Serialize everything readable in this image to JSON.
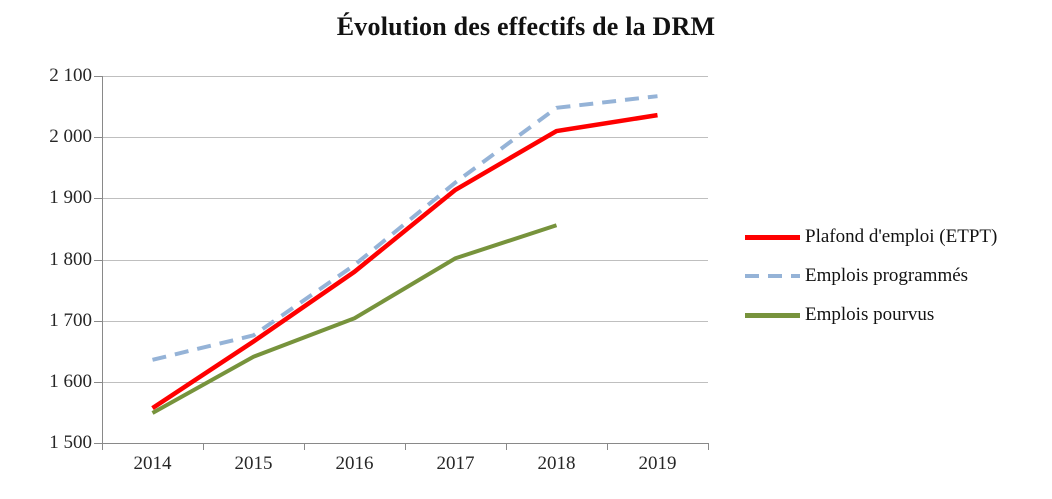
{
  "title": "Évolution des effectifs de la DRM",
  "chart_data": {
    "type": "line",
    "title": "Évolution des effectifs de la DRM",
    "categories": [
      "2014",
      "2015",
      "2016",
      "2017",
      "2018",
      "2019"
    ],
    "series": [
      {
        "name": "Plafond d'emploi (ETPT)",
        "color": "#FE0000",
        "dash": "solid",
        "values": [
          1557,
          1666,
          1780,
          1914,
          2010,
          2036
        ]
      },
      {
        "name": "Emplois programmés",
        "color": "#95B3D7",
        "dash": "dashed",
        "values": [
          1636,
          1676,
          1791,
          1926,
          2048,
          2067
        ]
      },
      {
        "name": "Emplois pourvus",
        "color": "#77933C",
        "dash": "solid",
        "values": [
          1549,
          1641,
          1704,
          1802,
          1856,
          null
        ]
      }
    ],
    "ylim": [
      1500,
      2100
    ],
    "y_tick_step": 100,
    "y_tick_labels": [
      "1 500",
      "1 600",
      "1 700",
      "1 800",
      "1 900",
      "2 000",
      "2 100"
    ],
    "xlabel": "",
    "ylabel": "",
    "grid": true,
    "legend_position": "right"
  },
  "colors": {
    "grid": "#BFBFBF",
    "axis": "#898989",
    "text": "#262626",
    "title": "#121212",
    "background": "#FFFFFF"
  }
}
